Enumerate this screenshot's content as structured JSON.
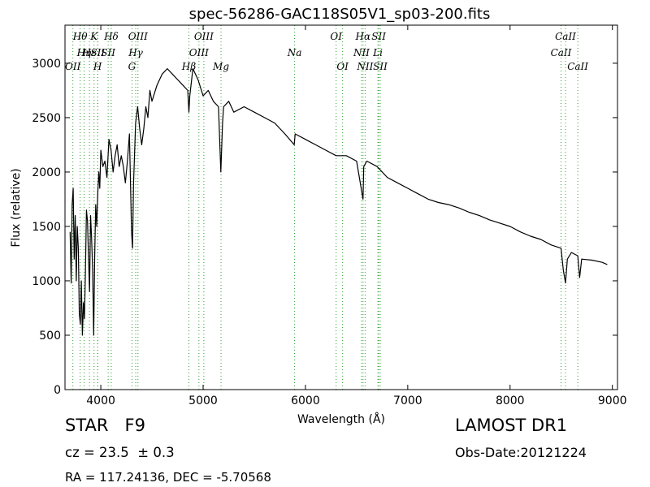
{
  "footer": {
    "object_class": "STAR   F9",
    "redshift": "cz = 23.5  ± 0.3",
    "coordinates": "RA = 117.24136, DEC = -5.70568",
    "survey": "LAMOST DR1",
    "obs_date": "Obs-Date:20121224"
  },
  "chart_data": {
    "type": "line",
    "title": "spec-56286-GAC118S05V1_sp03-200.fits",
    "xlabel": "Wavelength (Å)",
    "ylabel": "Flux (relative)",
    "xlim": [
      3650,
      9050
    ],
    "ylim": [
      0,
      3350
    ],
    "x_ticks": [
      4000,
      5000,
      6000,
      7000,
      8000,
      9000
    ],
    "y_ticks": [
      0,
      500,
      1000,
      1500,
      2000,
      2500,
      3000
    ],
    "grid": false,
    "series_color": "#000000",
    "line_marker_color": "#2ca02c",
    "series": [
      {
        "x": [
          3700,
          3710,
          3720,
          3730,
          3740,
          3750,
          3760,
          3770,
          3780,
          3790,
          3800,
          3810,
          3820,
          3830,
          3840,
          3850,
          3860,
          3870,
          3880,
          3890,
          3900,
          3910,
          3920,
          3930,
          3940,
          3950,
          3960,
          3970,
          3980,
          3990,
          4000,
          4020,
          4040,
          4060,
          4080,
          4100,
          4120,
          4140,
          4160,
          4180,
          4200,
          4220,
          4240,
          4260,
          4280,
          4300,
          4310,
          4320,
          4340,
          4360,
          4380,
          4400,
          4420,
          4440,
          4460,
          4480,
          4500,
          4550,
          4600,
          4650,
          4700,
          4750,
          4800,
          4850,
          4861,
          4870,
          4900,
          4950,
          5000,
          5050,
          5100,
          5150,
          5173,
          5190,
          5200,
          5250,
          5300,
          5400,
          5500,
          5600,
          5700,
          5800,
          5890,
          5900,
          6000,
          6100,
          6200,
          6300,
          6400,
          6500,
          6563,
          6570,
          6600,
          6700,
          6800,
          6900,
          7000,
          7100,
          7200,
          7300,
          7400,
          7500,
          7600,
          7700,
          7800,
          7900,
          8000,
          8100,
          8200,
          8300,
          8400,
          8498,
          8520,
          8542,
          8560,
          8600,
          8662,
          8680,
          8700,
          8800,
          8900,
          8950
        ],
        "y": [
          1450,
          980,
          1700,
          1850,
          1200,
          1600,
          1000,
          1500,
          1300,
          700,
          600,
          1000,
          500,
          800,
          650,
          1100,
          1650,
          1550,
          1200,
          900,
          1600,
          1400,
          1100,
          500,
          1200,
          1700,
          1500,
          1800,
          2000,
          1850,
          2200,
          2050,
          2100,
          1950,
          2300,
          2200,
          2000,
          2150,
          2250,
          2050,
          2150,
          2050,
          1900,
          2100,
          2350,
          1450,
          1300,
          1900,
          2450,
          2600,
          2400,
          2250,
          2400,
          2600,
          2500,
          2750,
          2650,
          2800,
          2900,
          2950,
          2900,
          2850,
          2800,
          2750,
          2550,
          2700,
          2950,
          2850,
          2700,
          2750,
          2650,
          2600,
          2000,
          2450,
          2600,
          2650,
          2550,
          2600,
          2550,
          2500,
          2450,
          2350,
          2250,
          2350,
          2300,
          2250,
          2200,
          2150,
          2150,
          2100,
          1750,
          2050,
          2100,
          2050,
          1950,
          1900,
          1850,
          1800,
          1750,
          1720,
          1700,
          1670,
          1630,
          1600,
          1560,
          1530,
          1500,
          1450,
          1410,
          1380,
          1330,
          1300,
          1100,
          980,
          1200,
          1260,
          1230,
          1030,
          1200,
          1190,
          1170,
          1150
        ]
      }
    ],
    "lines": [
      {
        "name": "OII",
        "wavelength": 3727,
        "row": 2
      },
      {
        "name": "Hθ",
        "wavelength": 3798,
        "row": 0
      },
      {
        "name": "Hη",
        "wavelength": 3836,
        "row": 1
      },
      {
        "name": "Hε",
        "wavelength": 3889,
        "row": 1
      },
      {
        "name": "K",
        "wavelength": 3934,
        "row": 0
      },
      {
        "name": "SII",
        "wavelength": 3970,
        "row": 1
      },
      {
        "name": "H",
        "wavelength": 3969,
        "row": 2
      },
      {
        "name": "Hδ",
        "wavelength": 4102,
        "row": 0
      },
      {
        "name": "SII",
        "wavelength": 4072,
        "row": 1
      },
      {
        "name": "Hγ",
        "wavelength": 4341,
        "row": 1
      },
      {
        "name": "G",
        "wavelength": 4305,
        "row": 2
      },
      {
        "name": "OIII",
        "wavelength": 4363,
        "row": 0
      },
      {
        "name": "Hβ",
        "wavelength": 4861,
        "row": 2
      },
      {
        "name": "OIII",
        "wavelength": 4959,
        "row": 1
      },
      {
        "name": "OIII",
        "wavelength": 5007,
        "row": 0
      },
      {
        "name": "Mg",
        "wavelength": 5175,
        "row": 2
      },
      {
        "name": "Na",
        "wavelength": 5894,
        "row": 1
      },
      {
        "name": "OI",
        "wavelength": 6300,
        "row": 0
      },
      {
        "name": "OI",
        "wavelength": 6363,
        "row": 2
      },
      {
        "name": "NII",
        "wavelength": 6548,
        "row": 1
      },
      {
        "name": "Hα",
        "wavelength": 6563,
        "row": 0
      },
      {
        "name": "NII",
        "wavelength": 6583,
        "row": 2
      },
      {
        "name": "SII",
        "wavelength": 6716,
        "row": 0
      },
      {
        "name": "Li",
        "wavelength": 6708,
        "row": 1
      },
      {
        "name": "SII",
        "wavelength": 6731,
        "row": 2
      },
      {
        "name": "CaII",
        "wavelength": 8498,
        "row": 1
      },
      {
        "name": "CaII",
        "wavelength": 8542,
        "row": 0
      },
      {
        "name": "CaII",
        "wavelength": 8662,
        "row": 2
      }
    ]
  }
}
